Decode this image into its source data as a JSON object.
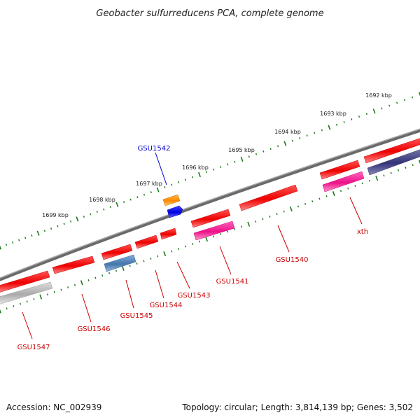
{
  "title": "Geobacter sulfurreducens PCA, complete genome",
  "footer": {
    "accession": "Accession: NC_002939",
    "summary": "Topology: circular; Length: 3,814,139 bp; Genes: 3,502"
  },
  "ruler": {
    "labels": [
      "1692 kbp",
      "1693 kbp",
      "1694 kbp",
      "1695 kbp",
      "1696 kbp",
      "1697 kbp",
      "1698 kbp",
      "1699 kbp"
    ]
  },
  "gene_labels": [
    {
      "id": "GSU1542",
      "text": "GSU1542",
      "selected": true
    },
    {
      "id": "xth",
      "text": "xth"
    },
    {
      "id": "GSU1540",
      "text": "GSU1540"
    },
    {
      "id": "GSU1541",
      "text": "GSU1541"
    },
    {
      "id": "GSU1543",
      "text": "GSU1543"
    },
    {
      "id": "GSU1544",
      "text": "GSU1544"
    },
    {
      "id": "GSU1545",
      "text": "GSU1545"
    },
    {
      "id": "GSU1546",
      "text": "GSU1546"
    },
    {
      "id": "GSU1547",
      "text": "GSU1547"
    }
  ],
  "colors": {
    "backbone": "#888888",
    "ruler_tick": "#1a7a1a",
    "gene_red": "#ee1111",
    "gene_magenta": "#ff2299",
    "gene_blue": "#5588bb",
    "gene_grey": "#bbbbbb",
    "gene_navy": "#444488",
    "gene_orange": "#ff9900",
    "gene_selected": "#0000ee",
    "label_red": "#cc0000",
    "label_blue": "#0000cc"
  }
}
